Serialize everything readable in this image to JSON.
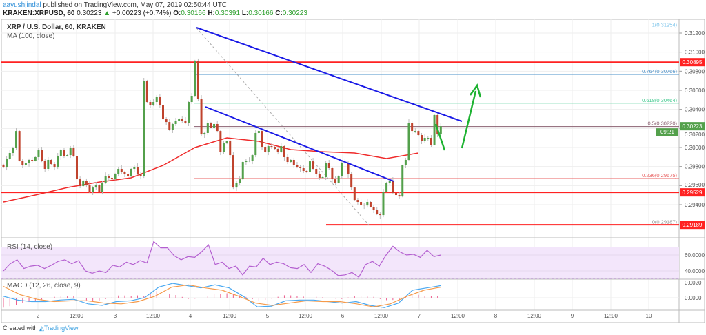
{
  "header": {
    "user": "aayushjindal",
    "published": "published on TradingView.com, May 07, 2019 02:50:44 UTC",
    "symbol": "KRAKEN:XRPUSD, 60",
    "last": "0.30223",
    "change": "+0.00223 (+0.74%)",
    "o_label": "O:",
    "o": "0.30166",
    "h_label": "H:",
    "h": "0.30391",
    "l_label": "L:",
    "l": "0.30166",
    "c_label": "C:",
    "c": "0.30223"
  },
  "legend": {
    "title": "XRP / U.S. Dollar, 60, KRAKEN",
    "ma": "MA (100, close)"
  },
  "footer": {
    "created": "Created with",
    "brand": "TradingView"
  },
  "colors": {
    "up": "#53a04b",
    "down": "#c0432d",
    "ma": "#ef2a2a",
    "trend": "#1a1ae6",
    "arrow": "#1db231",
    "rsi": "#b45fd0",
    "macd": "#4aa8f0",
    "signal": "#f59a4a",
    "hist": "#ec5c8c"
  },
  "chart_data": [
    {
      "type": "candlestick",
      "title": "XRP / U.S. Dollar, 60, KRAKEN",
      "ylim": [
        0.2915,
        0.314
      ],
      "y_ticks": [
        "0.31200",
        "0.31000",
        "0.30800",
        "0.30600",
        "0.30400",
        "0.30200",
        "0.30000",
        "0.29800",
        "0.29600",
        "0.29400"
      ],
      "x_ticks": [
        "2",
        "12:00",
        "3",
        "12:00",
        "4",
        "12:00",
        "5",
        "12:00",
        "6",
        "12:00",
        "7",
        "12:00",
        "8",
        "12:00",
        "9",
        "12:00",
        "10"
      ],
      "closes": [
        0.2979,
        0.29884,
        0.29942,
        0.29993,
        0.30173,
        0.29862,
        0.29812,
        0.29834,
        0.2987,
        0.29862,
        0.29899,
        0.29971,
        0.29862,
        0.29776,
        0.2987,
        0.29826,
        0.2979,
        0.29906,
        0.29971,
        0.29913,
        0.2992,
        0.29993,
        0.29913,
        0.29667,
        0.29595,
        0.29653,
        0.29609,
        0.29537,
        0.2958,
        0.29609,
        0.29537,
        0.29631,
        0.29703,
        0.29682,
        0.29667,
        0.29725,
        0.29776,
        0.2974,
        0.29725,
        0.29696,
        0.29776,
        0.29797,
        0.29725,
        0.29703,
        0.30701,
        0.30477,
        0.30448,
        0.30477,
        0.30535,
        0.30441,
        0.30296,
        0.30267,
        0.30188,
        0.30246,
        0.30282,
        0.30303,
        0.30282,
        0.3026,
        0.30477,
        0.30542,
        0.30911,
        0.30513,
        0.30137,
        0.30152,
        0.3026,
        0.30209,
        0.30246,
        0.30173,
        0.29956,
        0.30043,
        0.30065,
        0.2992,
        0.2958,
        0.29631,
        0.29667,
        0.29848,
        0.29862,
        0.29862,
        0.2992,
        0.30152,
        0.30173,
        0.30007,
        0.29956,
        0.30014,
        0.30007,
        0.29985,
        0.29956,
        0.30014,
        0.29899,
        0.29848,
        0.2987,
        0.29812,
        0.29797,
        0.29783,
        0.29754,
        0.2974,
        0.29855,
        0.29776,
        0.29725,
        0.29682,
        0.29689,
        0.29834,
        0.29783,
        0.29667,
        0.29631,
        0.29703,
        0.29841,
        0.29841,
        0.29718,
        0.2958,
        0.2945,
        0.29429,
        0.294,
        0.29392,
        0.29429,
        0.29378,
        0.29342,
        0.29306,
        0.29291,
        0.29537,
        0.29631,
        0.29653,
        0.29523,
        0.29501,
        0.29486,
        0.29812,
        0.2987,
        0.3026,
        0.30173,
        0.30173,
        0.3013,
        0.30065,
        0.30101,
        0.30101,
        0.30029,
        0.3034,
        0.30137,
        0.30223
      ],
      "ma100": [
        0.29429,
        0.29501,
        0.2958,
        0.29638,
        0.29682,
        0.29812,
        0.3,
        0.30101,
        0.30065,
        0.29978,
        0.29956,
        0.29942,
        0.29884,
        0.29942
      ],
      "horizontal_levels": [
        {
          "value": 0.30895,
          "label": "0.30895",
          "color": "#ff2222",
          "span": "full"
        },
        {
          "value": 0.29529,
          "label": "0.29529",
          "color": "#ff2222",
          "span": "full"
        },
        {
          "value": 0.29189,
          "label": "0.29189",
          "color": "#ff2222",
          "span": "partial"
        }
      ],
      "fib_levels": [
        {
          "ratio": "1",
          "value": 0.31254,
          "label": "1(0.31254)",
          "color": "#6cbde8"
        },
        {
          "ratio": "0.764",
          "value": 0.30766,
          "label": "0.764(0.30766)",
          "color": "#4a90c8"
        },
        {
          "ratio": "0.618",
          "value": 0.30464,
          "label": "0.618(0.30464)",
          "color": "#3cc88c"
        },
        {
          "ratio": "0.5",
          "value": 0.3022,
          "label": "0.5(0.30220)",
          "color": "#8a6070"
        },
        {
          "ratio": "0.236",
          "value": 0.29675,
          "label": "0.236(0.29675)",
          "color": "#e86060"
        },
        {
          "ratio": "0",
          "value": 0.29187,
          "label": "0(0.29187)",
          "color": "#909090"
        }
      ],
      "last_price": {
        "label": "0.30223",
        "countdown": "09:21",
        "color": "#53a04b"
      }
    },
    {
      "type": "line",
      "title": "RSI (14, close)",
      "ylim": [
        25,
        80
      ],
      "y_ticks": [
        "60.0000",
        "40.0000"
      ],
      "band": [
        30,
        70
      ],
      "values": [
        40,
        49,
        54,
        43,
        46,
        47,
        43,
        47,
        52,
        54,
        49,
        53,
        40,
        37,
        40,
        38,
        47,
        45,
        51,
        48,
        53,
        50,
        77,
        69,
        69,
        59,
        54,
        58,
        57,
        64,
        73,
        48,
        51,
        43,
        46,
        35,
        46,
        45,
        56,
        48,
        51,
        49,
        44,
        43,
        48,
        38,
        49,
        46,
        41,
        34,
        35,
        38,
        32,
        48,
        52,
        46,
        60,
        71,
        64,
        60,
        61,
        57,
        66,
        58,
        60
      ]
    },
    {
      "type": "line",
      "title": "MACD (12, 26, close, 9)",
      "y_ticks": [
        "0.0020",
        "0.0000"
      ],
      "macd": [
        0.0002,
        -0.0003,
        -0.0005,
        -0.0005,
        -0.0003,
        -0.0002,
        -0.0008,
        -0.001,
        -0.0005,
        -0.0004,
        0.0,
        0.0014,
        0.0019,
        0.0016,
        0.0013,
        0.0017,
        0.0013,
        0.0002,
        -0.0012,
        -0.0011,
        -0.0004,
        -0.0003,
        -0.0003,
        -0.0005,
        -0.0007,
        -0.0005,
        -0.001,
        -0.0013,
        -0.0007,
        0.001,
        0.0013,
        0.0016
      ],
      "signal": [
        0.0015,
        0.0004,
        -0.0002,
        -0.0005,
        -0.0004,
        -0.0004,
        -0.0007,
        -0.0008,
        -0.0005,
        0.0002,
        0.0014,
        0.0017,
        0.0013,
        0.001,
        0.0002,
        -0.0007,
        -0.001,
        -0.0007,
        -0.0004,
        -0.0005,
        -0.0005,
        -0.0008,
        -0.0012,
        -0.0008,
        0.0002,
        0.001,
        0.0014
      ]
    }
  ]
}
